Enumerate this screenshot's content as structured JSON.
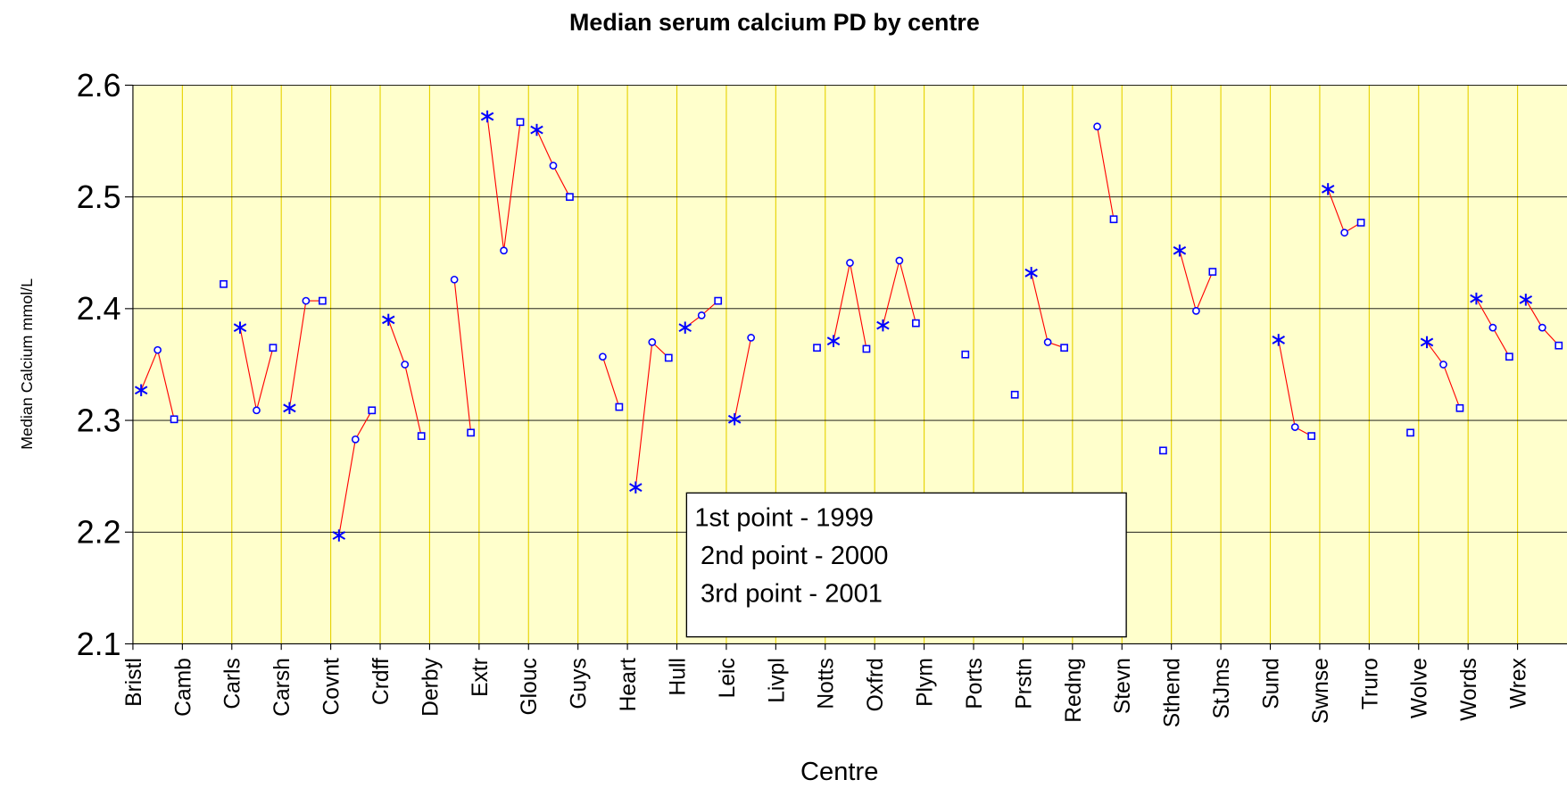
{
  "chart_data": {
    "type": "line",
    "title": "Median serum calcium  PD by centre",
    "x_label": "Centre",
    "y_label": "Median Calcium mmol/L",
    "categories": [
      "Bristl",
      "Camb",
      "Carls",
      "Carsh",
      "Covnt",
      "Crdff",
      "Derby",
      "Extr",
      "Glouc",
      "Guys",
      "Heart",
      "Hull",
      "Leic",
      "Livpl",
      "Notts",
      "Oxfrd",
      "Plym",
      "Ports",
      "Prstn",
      "Redng",
      "Stevn",
      "Sthend",
      "StJms",
      "Sund",
      "Swnse",
      "Truro",
      "Wolve",
      "Words",
      "Wrex"
    ],
    "series": [
      {
        "name": "1st point - 1999",
        "color": "#0000ff",
        "marker": "asterisk",
        "values": [
          2.327,
          null,
          2.383,
          2.311,
          2.197,
          2.39,
          null,
          2.572,
          2.56,
          null,
          2.24,
          2.383,
          2.301,
          null,
          2.371,
          2.385,
          null,
          null,
          2.432,
          null,
          null,
          2.452,
          null,
          2.372,
          2.507,
          null,
          2.37,
          2.409,
          2.408
        ]
      },
      {
        "name": "2nd point - 2000",
        "color": "#0000ff",
        "marker": "circle",
        "values": [
          2.363,
          null,
          2.309,
          2.407,
          2.283,
          2.35,
          2.426,
          2.452,
          2.528,
          2.357,
          2.37,
          2.394,
          2.374,
          null,
          2.441,
          2.443,
          null,
          null,
          2.37,
          2.563,
          null,
          2.398,
          null,
          2.294,
          2.468,
          null,
          2.35,
          2.383,
          2.383
        ]
      },
      {
        "name": "3rd point - 2001",
        "color": "#0000ff",
        "marker": "square",
        "values": [
          2.301,
          2.422,
          2.365,
          2.407,
          2.309,
          2.286,
          2.289,
          2.567,
          2.5,
          2.312,
          2.356,
          2.407,
          null,
          2.365,
          2.364,
          2.387,
          2.359,
          2.323,
          2.365,
          2.48,
          2.273,
          2.433,
          null,
          2.286,
          2.477,
          2.289,
          2.311,
          2.357,
          2.367
        ]
      }
    ],
    "line_color": "#ff0000",
    "ylim": [
      2.1,
      2.6
    ],
    "yticks": [
      2.1,
      2.2,
      2.3,
      2.4,
      2.5,
      2.6
    ],
    "grid": true,
    "background": "#ffffcc"
  }
}
